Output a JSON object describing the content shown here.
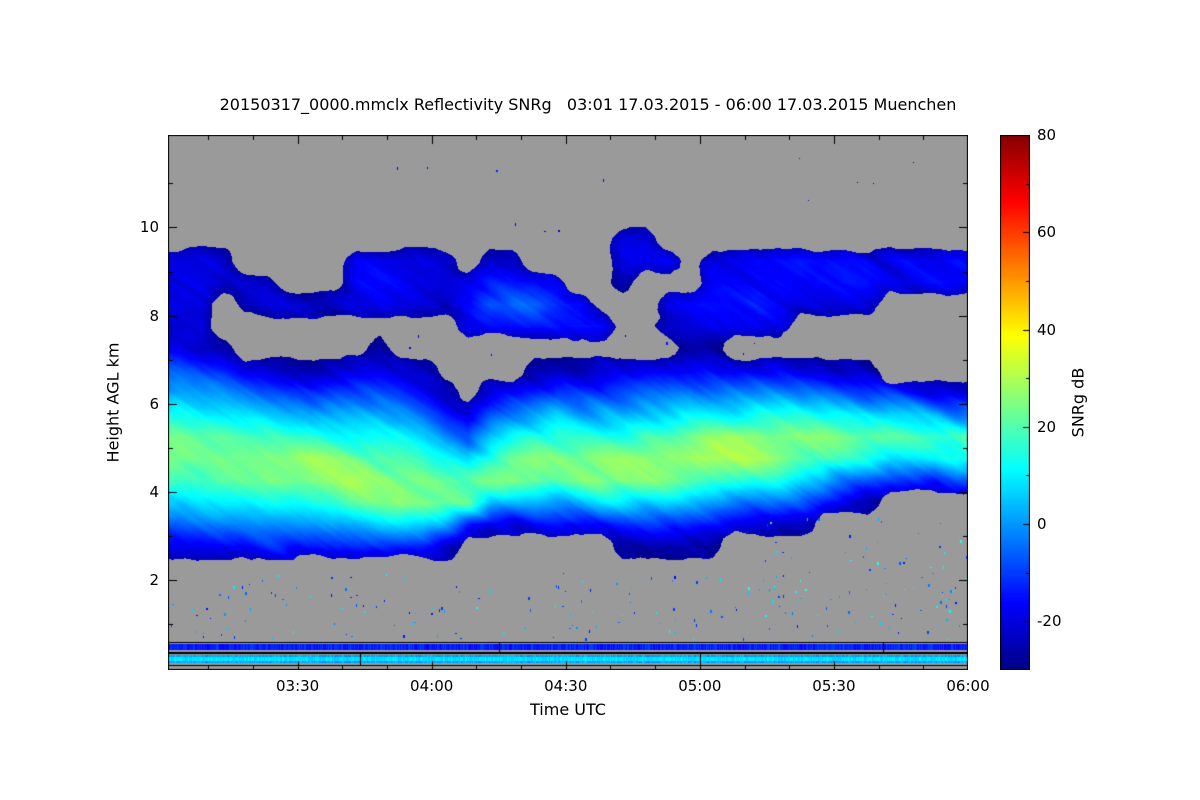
{
  "title": "20150317_0000.mmclx Reflectivity SNRg   03:01 17.03.2015 - 06:00 17.03.2015 Muenchen",
  "chart_data": {
    "type": "heatmap",
    "xlabel": "Time UTC",
    "ylabel": "Height AGL km",
    "value_label": "SNRg dB",
    "file": "20150317_0000.mmclx",
    "quantity": "Reflectivity SNRg",
    "station": "Muenchen",
    "time_start": "03:01 17.03.2015",
    "time_end": "06:00 17.03.2015",
    "no_data_color": "#9a9a9a",
    "x_axis": {
      "min_minutes": 181,
      "max_minutes": 360,
      "minor_tick_step_minutes": 10,
      "major_ticks": [
        {
          "minutes": 210,
          "label": "03:30"
        },
        {
          "minutes": 240,
          "label": "04:00"
        },
        {
          "minutes": 270,
          "label": "04:30"
        },
        {
          "minutes": 300,
          "label": "05:00"
        },
        {
          "minutes": 330,
          "label": "05:30"
        },
        {
          "minutes": 360,
          "label": "06:00"
        }
      ]
    },
    "y_axis": {
      "min_km": -0.05,
      "max_km": 12.1,
      "minor_tick_step_km": 1,
      "major_ticks": [
        {
          "km": 2,
          "label": "2"
        },
        {
          "km": 4,
          "label": "4"
        },
        {
          "km": 6,
          "label": "6"
        },
        {
          "km": 8,
          "label": "8"
        },
        {
          "km": 10,
          "label": "10"
        }
      ]
    },
    "colorbar": {
      "min_db": -30,
      "max_db": 80,
      "minor_tick_step_db": 10,
      "ticks": [
        {
          "db": -20,
          "label": "-20"
        },
        {
          "db": 0,
          "label": "0"
        },
        {
          "db": 20,
          "label": "20"
        },
        {
          "db": 40,
          "label": "40"
        },
        {
          "db": 60,
          "label": "60"
        },
        {
          "db": 80,
          "label": "80"
        }
      ],
      "colormap_stops": [
        [
          0,
          "#000085"
        ],
        [
          0.125,
          "#0000ff"
        ],
        [
          0.375,
          "#00ffff"
        ],
        [
          0.625,
          "#ffff00"
        ],
        [
          0.875,
          "#ff0000"
        ],
        [
          1,
          "#850000"
        ]
      ]
    },
    "grid": {
      "note": "SNRg dB sampled on 36 time columns (03:01-06:00) x 21 height rows (centers 0.25..10.25 km); -99 = no echo (gray)",
      "no_data_value": -99,
      "col_count": 36,
      "row_height_km": 0.5,
      "first_row_center_km": 0.25,
      "rows_bottom_up": [
        [
          -99,
          -99,
          -99,
          -99,
          -99,
          -99,
          -99,
          -99,
          -99,
          -99,
          -99,
          -99,
          -99,
          -99,
          -99,
          -99,
          -99,
          -99,
          -99,
          -99,
          -99,
          -99,
          -99,
          -99,
          -99,
          -99,
          -99,
          -99,
          -99,
          -99,
          -99,
          -99,
          -99,
          -99,
          -99,
          -99
        ],
        [
          -99,
          -99,
          -99,
          -99,
          -99,
          -99,
          -99,
          -99,
          -99,
          -99,
          -99,
          -99,
          -99,
          -99,
          -99,
          -99,
          -99,
          -99,
          -99,
          -99,
          -99,
          -99,
          -99,
          -99,
          -99,
          -99,
          -99,
          -99,
          -99,
          -99,
          -99,
          -99,
          -99,
          -99,
          -99,
          -99
        ],
        [
          -99,
          -99,
          -99,
          -99,
          -99,
          -99,
          -99,
          -99,
          -99,
          -99,
          -99,
          -99,
          -99,
          -99,
          -99,
          -99,
          -99,
          -99,
          -99,
          -99,
          -99,
          -99,
          -99,
          -99,
          -99,
          -99,
          -99,
          -99,
          -99,
          -99,
          -99,
          -99,
          -99,
          -99,
          -99,
          -99
        ],
        [
          -99,
          -99,
          -99,
          -99,
          -99,
          -99,
          -99,
          -99,
          -99,
          -99,
          -99,
          -99,
          -99,
          -99,
          -99,
          -99,
          -99,
          -99,
          -99,
          -99,
          -99,
          -99,
          -99,
          -99,
          -99,
          -99,
          -99,
          -99,
          -99,
          -99,
          -99,
          -99,
          -99,
          -99,
          -99,
          -99
        ],
        [
          -99,
          -99,
          -99,
          -99,
          -99,
          -99,
          -99,
          -99,
          -99,
          -99,
          -99,
          -99,
          -99,
          -99,
          -99,
          -99,
          -99,
          -99,
          -99,
          -99,
          -99,
          -99,
          -99,
          -99,
          -99,
          -99,
          -99,
          -99,
          -99,
          -99,
          -99,
          -99,
          -99,
          -99,
          -99,
          -99
        ],
        [
          -18,
          -18,
          -16,
          -16,
          -14,
          -14,
          -13,
          -12,
          -11,
          -12,
          -13,
          -15,
          -24,
          -99,
          -99,
          -99,
          -99,
          -99,
          -99,
          -99,
          -25,
          -25,
          -26,
          -26,
          -26,
          -99,
          -99,
          -99,
          -99,
          -99,
          -99,
          -99,
          -99,
          -99,
          -99,
          -99
        ],
        [
          -7,
          -6,
          -4,
          -3,
          -1,
          0,
          2,
          4,
          5,
          5,
          6,
          6,
          1,
          -14,
          -21,
          -19,
          -16,
          -17,
          -16,
          -13,
          -12,
          -11,
          -10,
          -11,
          -12,
          -15,
          -18,
          -21,
          -24,
          -99,
          -99,
          -99,
          -99,
          -99,
          -99,
          -99
        ],
        [
          4,
          6,
          8,
          10,
          13,
          14,
          17,
          19,
          22,
          23,
          26,
          25,
          24,
          22,
          5,
          3,
          4,
          2,
          4,
          8,
          9,
          8,
          8,
          6,
          4,
          1,
          -3,
          -5,
          -9,
          -14,
          -21,
          -25,
          -99,
          -99,
          -99,
          -99
        ],
        [
          16,
          17,
          21,
          22,
          26,
          26,
          27,
          27,
          27,
          26,
          26,
          25,
          22,
          19,
          22,
          24,
          24,
          21,
          24,
          26,
          26,
          27,
          25,
          22,
          20,
          16,
          13,
          11,
          7,
          3,
          -3,
          -9,
          -13,
          -13,
          -15,
          -10
        ],
        [
          24,
          24,
          25,
          25,
          26,
          26,
          27,
          26,
          24,
          22,
          20,
          16,
          10,
          6,
          16,
          23,
          25,
          25,
          25,
          26,
          26,
          27,
          28,
          28,
          28,
          27,
          27,
          26,
          23,
          21,
          15,
          11,
          6,
          5,
          6,
          14
        ],
        [
          24,
          24,
          23,
          20,
          18,
          15,
          14,
          14,
          13,
          12,
          10,
          5,
          -1,
          -7,
          4,
          10,
          14,
          16,
          14,
          14,
          14,
          18,
          20,
          23,
          25,
          26,
          27,
          26,
          25,
          24,
          22,
          20,
          19,
          18,
          18,
          17
        ],
        [
          15,
          12,
          10,
          7,
          5,
          2,
          1,
          2,
          2,
          2,
          -1,
          -6,
          -13,
          -20,
          -9,
          -3,
          0,
          3,
          1,
          2,
          2,
          5,
          7,
          10,
          11,
          11,
          13,
          12,
          12,
          12,
          11,
          8,
          9,
          6,
          2,
          -2
        ],
        [
          3,
          0,
          -2,
          -6,
          -9,
          -11,
          -12,
          -10,
          -9,
          -9,
          -11,
          -16,
          -25,
          -99,
          -22,
          -17,
          -14,
          -11,
          -12,
          -10,
          -10,
          -7,
          -6,
          -3,
          -3,
          -4,
          -3,
          -3,
          -4,
          -5,
          -7,
          -10,
          -12,
          -15,
          -20,
          -20
        ],
        [
          -8,
          -13,
          -15,
          -19,
          -22,
          -25,
          -25,
          -22,
          -20,
          -19,
          -21,
          -25,
          -99,
          -99,
          -99,
          -99,
          -25,
          -25,
          -25,
          -22,
          -22,
          -20,
          -19,
          -17,
          -16,
          -19,
          -18,
          -18,
          -21,
          -21,
          -24,
          -26,
          -99,
          -99,
          -99,
          -99
        ],
        [
          -20,
          -25,
          -25,
          -99,
          -99,
          -99,
          -99,
          -99,
          -99,
          -26,
          -99,
          -99,
          -99,
          -99,
          -99,
          -99,
          -99,
          -99,
          -99,
          -99,
          -99,
          -99,
          -99,
          -26,
          -26,
          -99,
          -99,
          -99,
          -99,
          -99,
          -99,
          -99,
          -99,
          -99,
          -99,
          -99
        ],
        [
          -24,
          -20,
          -99,
          -99,
          -99,
          -99,
          -99,
          -99,
          -99,
          -99,
          -99,
          -99,
          -99,
          -16,
          -14,
          -13,
          -14,
          -16,
          -17,
          -18,
          -99,
          -99,
          -20,
          -18,
          -17,
          -18,
          -17,
          -19,
          -99,
          -99,
          -99,
          -99,
          -99,
          -99,
          -99,
          -99
        ],
        [
          -18,
          -18,
          -99,
          -21,
          -22,
          -23,
          -22,
          -23,
          -20,
          -19,
          -20,
          -21,
          -21,
          -15,
          -6,
          -5,
          -7,
          -12,
          -16,
          -99,
          -99,
          -99,
          -17,
          -16,
          -17,
          -16,
          -15,
          -17,
          -20,
          -21,
          -20,
          -22,
          -99,
          -99,
          -99,
          -99
        ],
        [
          -19,
          -20,
          -22,
          -22,
          -23,
          -99,
          -99,
          -99,
          -18,
          -17,
          -18,
          -19,
          -19,
          -16,
          -14,
          -13,
          -15,
          -17,
          -99,
          -99,
          -22,
          -99,
          -99,
          -99,
          -20,
          -17,
          -16,
          -16,
          -17,
          -17,
          -16,
          -17,
          -18,
          -17,
          -17,
          -16
        ],
        [
          -20,
          -21,
          -23,
          -99,
          -99,
          -99,
          -99,
          -99,
          -19,
          -18,
          -18,
          -19,
          -20,
          -99,
          -20,
          -20,
          -99,
          -99,
          -99,
          -99,
          -20,
          -19,
          -20,
          -99,
          -18,
          -17,
          -16,
          -17,
          -16,
          -17,
          -16,
          -17,
          -17,
          -16,
          -17,
          -17
        ],
        [
          -99,
          -99,
          -99,
          -99,
          -99,
          -99,
          -99,
          -99,
          -99,
          -99,
          -99,
          -99,
          -99,
          -99,
          -99,
          -99,
          -99,
          -99,
          -99,
          -99,
          -22,
          -21,
          -99,
          -99,
          -99,
          -99,
          -99,
          -99,
          -99,
          -99,
          -99,
          -99,
          -99,
          -99,
          -99,
          -99
        ],
        [
          -99,
          -99,
          -99,
          -99,
          -99,
          -99,
          -99,
          -99,
          -99,
          -99,
          -99,
          -99,
          -99,
          -99,
          -99,
          -99,
          -99,
          -99,
          -99,
          -99,
          -99,
          -99,
          -99,
          -99,
          -99,
          -99,
          -99,
          -99,
          -99,
          -99,
          -99,
          -99,
          -99,
          -99,
          -99,
          -99
        ]
      ]
    },
    "surface_bands": [
      {
        "y0_km": 0.4,
        "y1_km": 0.55,
        "db": -13
      },
      {
        "y0_km": 0.1,
        "y1_km": 0.3,
        "db": 2,
        "bright_inner": [
          0.16,
          0.24
        ]
      }
    ],
    "surface_outlines": [
      {
        "y0_km": 0.37,
        "y1_km": 0.58,
        "divider_minutes": [
          255,
          341
        ]
      },
      {
        "y0_km": 0.06,
        "y1_km": 0.33,
        "divider_minutes": [
          224,
          300
        ]
      }
    ],
    "speckles": {
      "seed": 1337,
      "sets": [
        {
          "count": 150,
          "fx0": 0.0,
          "fx1": 1.0,
          "h0": 0.65,
          "h1": 2.15,
          "db0": -16,
          "db1": 12
        },
        {
          "count": 80,
          "fx0": 0.72,
          "fx1": 1.0,
          "h0": 0.9,
          "h1": 3.4,
          "db0": -14,
          "db1": 16
        },
        {
          "count": 12,
          "fx0": 0.1,
          "fx1": 0.95,
          "h0": 9.8,
          "h1": 11.6,
          "db0": -22,
          "db1": -12
        },
        {
          "count": 10,
          "fx0": 0.3,
          "fx1": 0.75,
          "h0": 7.1,
          "h1": 7.6,
          "db0": -22,
          "db1": -14
        }
      ]
    }
  }
}
